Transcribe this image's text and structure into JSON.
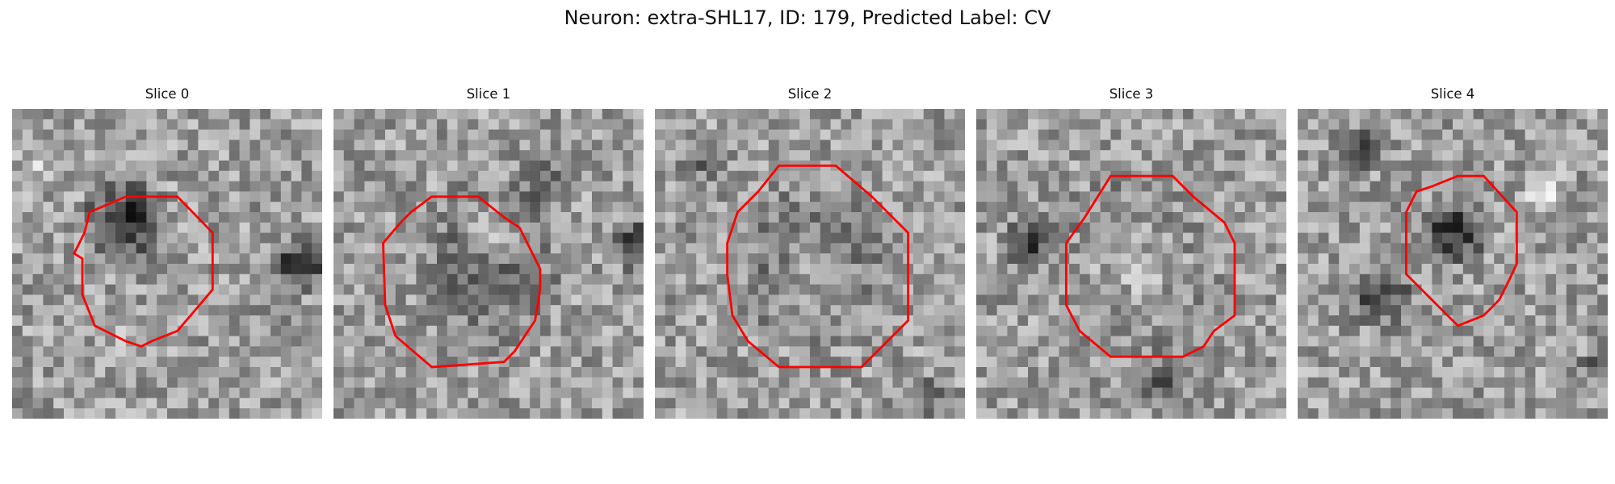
{
  "figure": {
    "title": "Neuron: extra-SHL17, ID: 179, Predicted Label: CV"
  },
  "colors": {
    "contour": "#ff0000"
  },
  "panels": [
    {
      "title": "Slice 0",
      "image": "grayscale EM patch, dark blob center-left with dark patch at right edge",
      "contour": "red-polygon"
    },
    {
      "title": "Slice 1",
      "image": "grayscale EM patch, light center ringed by darker membrane",
      "contour": "red-polygon"
    },
    {
      "title": "Slice 2",
      "image": "grayscale EM patch, noisy mid-gray with darker ring",
      "contour": "red-polygon"
    },
    {
      "title": "Slice 3",
      "image": "grayscale EM patch, bright round center with dark surround",
      "contour": "red-polygon"
    },
    {
      "title": "Slice 4",
      "image": "grayscale EM patch, dark irregular blob upper-center",
      "contour": "red-polygon"
    }
  ]
}
